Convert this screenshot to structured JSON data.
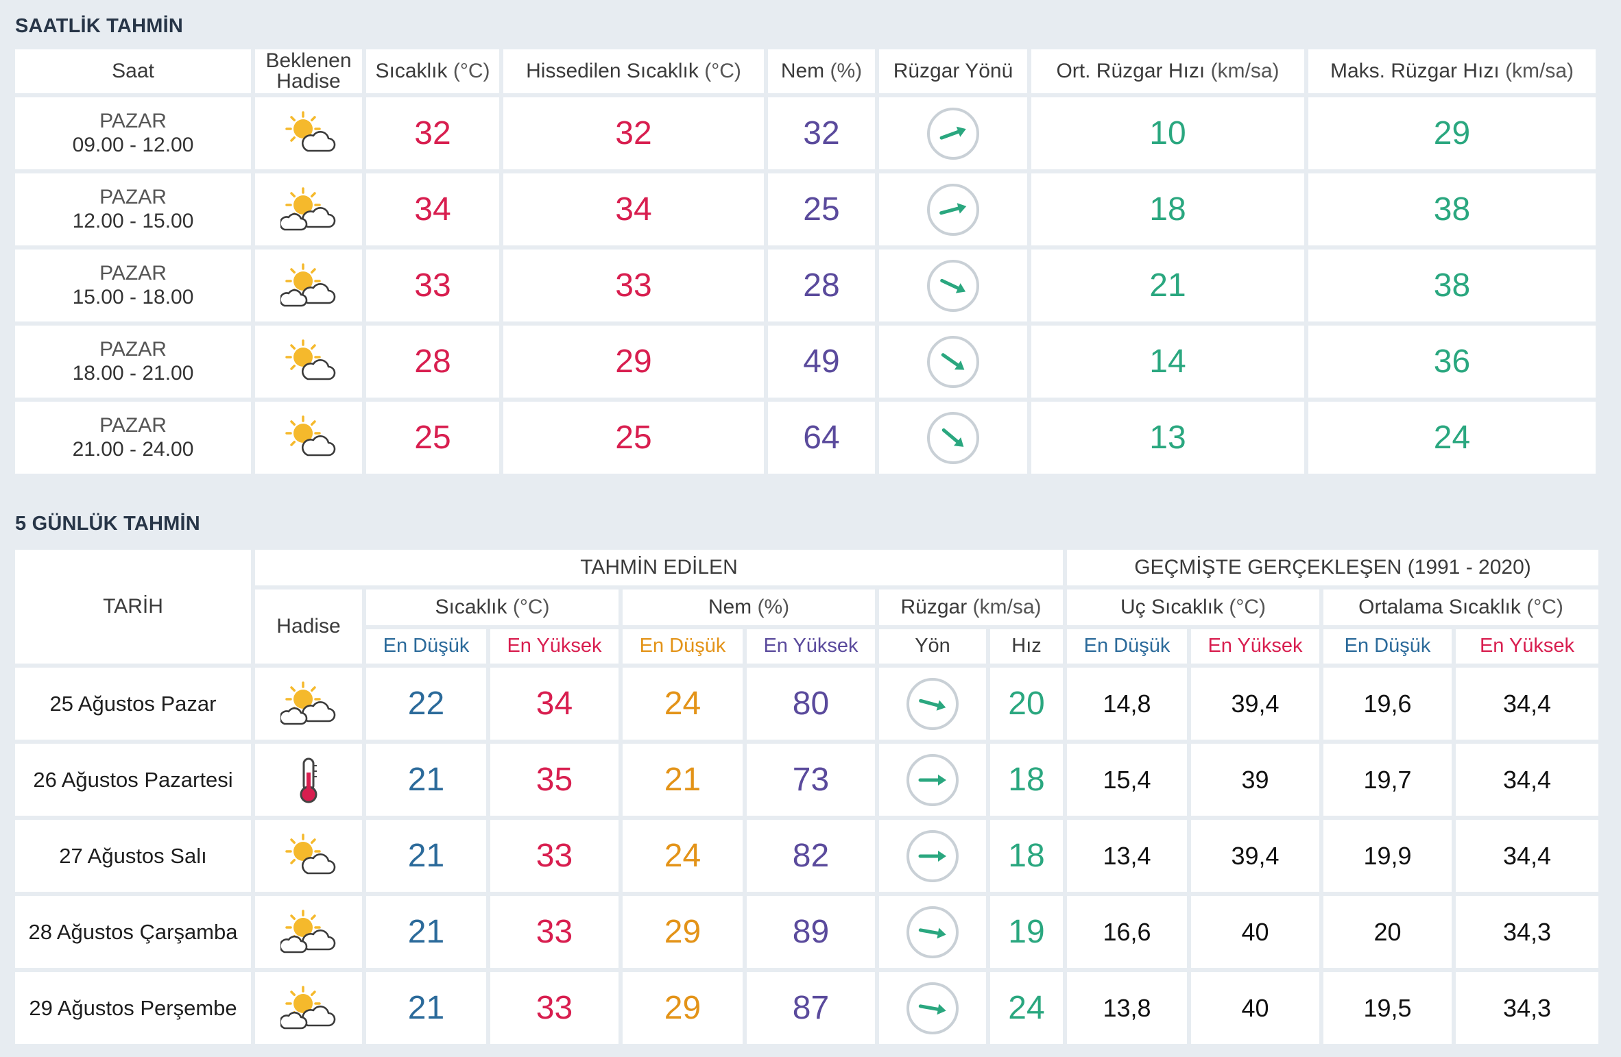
{
  "hourly": {
    "title": "SAATLİK TAHMİN",
    "headers": {
      "time": "Saat",
      "event": "Beklenen Hadise",
      "temp": "Sıcaklık",
      "temp_unit": "(°C)",
      "feels": "Hissedilen Sıcaklık",
      "feels_unit": "(°C)",
      "humidity": "Nem",
      "humidity_unit": "(%)",
      "wind_dir": "Rüzgar Yönü",
      "avg_wind": "Ort. Rüzgar Hızı",
      "avg_wind_unit": "(km/sa)",
      "max_wind": "Maks. Rüzgar Hızı",
      "max_wind_unit": "(km/sa)"
    },
    "rows": [
      {
        "day": "PAZAR",
        "time": "09.00 - 12.00",
        "icon": "sun-behind-cloud-icon",
        "temp": "32",
        "feels": "32",
        "humidity": "32",
        "wind_icon": "wind-arrow-icon",
        "wind_angle": 70,
        "avg_wind": "10",
        "max_wind": "29"
      },
      {
        "day": "PAZAR",
        "time": "12.00 - 15.00",
        "icon": "partly-cloudy-icon",
        "temp": "34",
        "feels": "34",
        "humidity": "25",
        "wind_icon": "wind-arrow-icon",
        "wind_angle": 75,
        "avg_wind": "18",
        "max_wind": "38"
      },
      {
        "day": "PAZAR",
        "time": "15.00 - 18.00",
        "icon": "partly-cloudy-icon",
        "temp": "33",
        "feels": "33",
        "humidity": "28",
        "wind_icon": "wind-arrow-icon",
        "wind_angle": 115,
        "avg_wind": "21",
        "max_wind": "38"
      },
      {
        "day": "PAZAR",
        "time": "18.00 - 21.00",
        "icon": "sun-behind-cloud-icon",
        "temp": "28",
        "feels": "29",
        "humidity": "49",
        "wind_icon": "wind-arrow-icon",
        "wind_angle": 125,
        "avg_wind": "14",
        "max_wind": "36"
      },
      {
        "day": "PAZAR",
        "time": "21.00 - 24.00",
        "icon": "sun-behind-cloud-icon",
        "temp": "25",
        "feels": "25",
        "humidity": "64",
        "wind_icon": "wind-arrow-icon",
        "wind_angle": 130,
        "avg_wind": "13",
        "max_wind": "24"
      }
    ]
  },
  "daily": {
    "title": "5 GÜNLÜK TAHMİN",
    "headers": {
      "date": "TARİH",
      "forecast_group": "TAHMİN EDİLEN",
      "history_group": "GEÇMİŞTE GERÇEKLEŞEN (1991 - 2020)",
      "event": "Hadise",
      "temp": "Sıcaklık",
      "temp_unit": "(°C)",
      "humidity": "Nem",
      "humidity_unit": "(%)",
      "wind": "Rüzgar",
      "wind_unit": "(km/sa)",
      "extreme_temp": "Uç Sıcaklık",
      "extreme_temp_unit": "(°C)",
      "avg_temp": "Ortalama Sıcaklık",
      "avg_temp_unit": "(°C)",
      "min": "En Düşük",
      "max": "En Yüksek",
      "dir": "Yön",
      "speed": "Hız"
    },
    "rows": [
      {
        "date": "25 Ağustos Pazar",
        "icon": "partly-cloudy-icon",
        "temp_min": "22",
        "temp_max": "34",
        "hum_min": "24",
        "hum_max": "80",
        "wind_icon": "wind-arrow-icon",
        "wind_angle": 105,
        "wind_speed": "20",
        "ext_min": "14,8",
        "ext_max": "39,4",
        "avg_min": "19,6",
        "avg_max": "34,4"
      },
      {
        "date": "26 Ağustos Pazartesi",
        "icon": "thermometer-icon",
        "temp_min": "21",
        "temp_max": "35",
        "hum_min": "21",
        "hum_max": "73",
        "wind_icon": "wind-arrow-icon",
        "wind_angle": 90,
        "wind_speed": "18",
        "ext_min": "15,4",
        "ext_max": "39",
        "avg_min": "19,7",
        "avg_max": "34,4"
      },
      {
        "date": "27 Ağustos Salı",
        "icon": "sun-behind-cloud-icon",
        "temp_min": "21",
        "temp_max": "33",
        "hum_min": "24",
        "hum_max": "82",
        "wind_icon": "wind-arrow-icon",
        "wind_angle": 90,
        "wind_speed": "18",
        "ext_min": "13,4",
        "ext_max": "39,4",
        "avg_min": "19,9",
        "avg_max": "34,4"
      },
      {
        "date": "28 Ağustos Çarşamba",
        "icon": "partly-cloudy-icon",
        "temp_min": "21",
        "temp_max": "33",
        "hum_min": "29",
        "hum_max": "89",
        "wind_icon": "wind-arrow-icon",
        "wind_angle": 100,
        "wind_speed": "19",
        "ext_min": "16,6",
        "ext_max": "40",
        "avg_min": "20",
        "avg_max": "34,3"
      },
      {
        "date": "29 Ağustos Perşembe",
        "icon": "partly-cloudy-icon",
        "temp_min": "21",
        "temp_max": "33",
        "hum_min": "29",
        "hum_max": "87",
        "wind_icon": "wind-arrow-icon",
        "wind_angle": 100,
        "wind_speed": "24",
        "ext_min": "13,8",
        "ext_max": "40",
        "avg_min": "19,5",
        "avg_max": "34,3"
      }
    ]
  },
  "colors": {
    "temperature": "#d81e4f",
    "humidity": "#5a4a9c",
    "wind": "#2aa77f",
    "min_temp": "#2b6a9a",
    "min_humidity": "#e39318",
    "background": "#e7ecf1",
    "heading": "#273547"
  }
}
